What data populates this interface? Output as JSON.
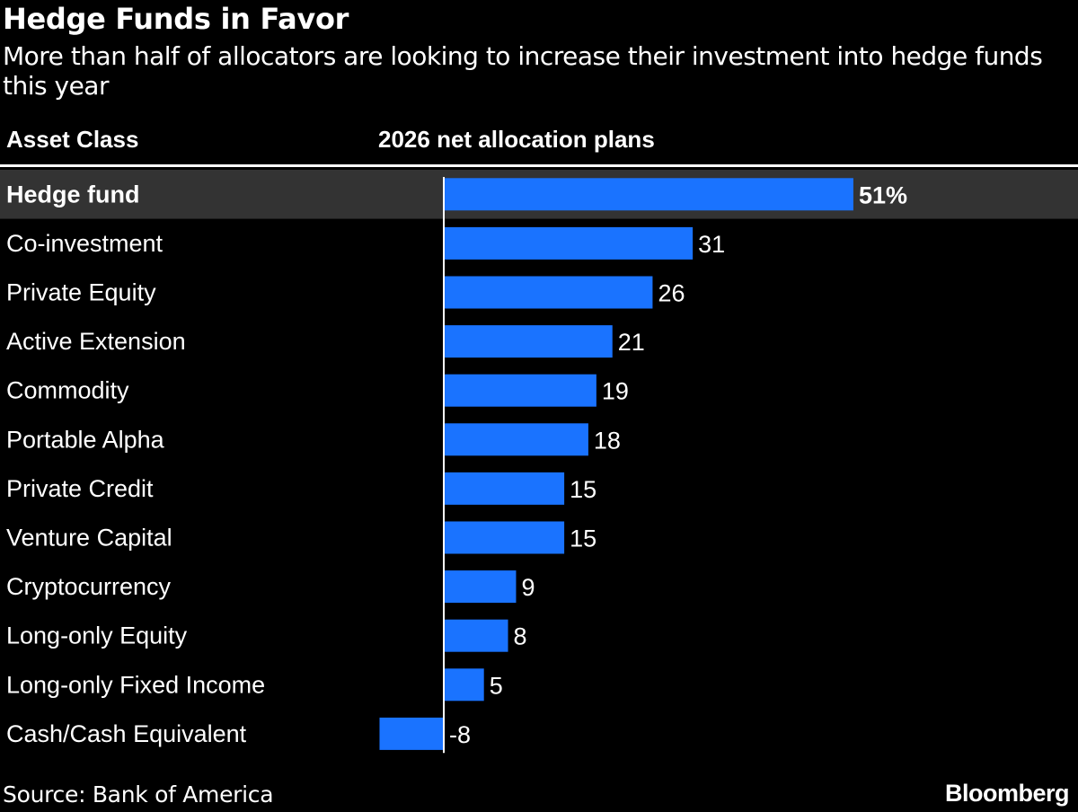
{
  "header": {
    "title": "Hedge Funds in Favor",
    "subtitle": "More than half of allocators are looking to increase their investment into hedge funds this year",
    "col_category": "Asset Class",
    "col_value": "2026 net allocation plans"
  },
  "footer": {
    "source": "Source: Bank of America",
    "logo": "Bloomberg"
  },
  "colors": {
    "background": "#000000",
    "bar": "#1a73ff",
    "highlight_row": "#333333",
    "text": "#ffffff"
  },
  "chart_data": {
    "type": "bar",
    "orientation": "horizontal",
    "highlighted_category": "Hedge fund",
    "categories": [
      "Hedge fund",
      "Co-investment",
      "Private Equity",
      "Active Extension",
      "Commodity",
      "Portable Alpha",
      "Private Credit",
      "Venture Capital",
      "Cryptocurrency",
      "Long-only Equity",
      "Long-only Fixed Income",
      "Cash/Cash Equivalent"
    ],
    "values": [
      51,
      31,
      26,
      21,
      19,
      18,
      15,
      15,
      9,
      8,
      5,
      -8
    ],
    "data_labels": [
      "51%",
      "31",
      "26",
      "21",
      "19",
      "18",
      "15",
      "15",
      "9",
      "8",
      "5",
      "-8"
    ],
    "value_unit": "%",
    "xlim": [
      -8,
      51
    ],
    "grid": false,
    "legend": "none"
  }
}
